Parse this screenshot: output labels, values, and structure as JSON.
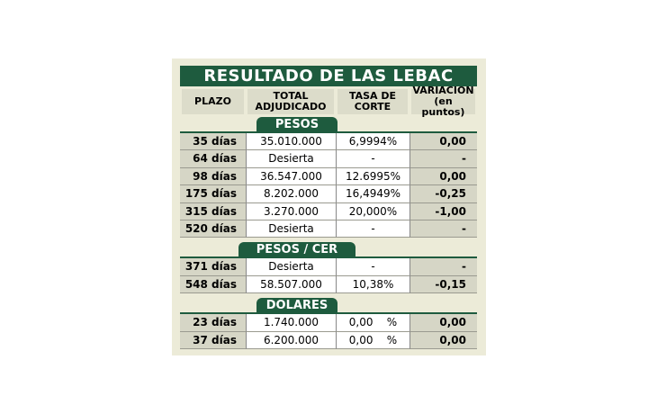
{
  "title": "RESULTADO DE LAS LEBAC",
  "headers": [
    [
      "PLAZO"
    ],
    [
      "TOTAL",
      "ADJUDICADO"
    ],
    [
      "TASA DE",
      "CORTE"
    ],
    [
      "VARIACION",
      "(en puntos)"
    ]
  ],
  "sections": [
    {
      "name": "PESOS",
      "rows": [
        [
          "35 días",
          "35.010.000",
          "6,9994%",
          "0,00"
        ],
        [
          "64 días",
          "Desierta",
          "-",
          "-"
        ],
        [
          "98 días",
          "36.547.000",
          "12.6995%",
          "0,00"
        ],
        [
          "175 días",
          "8.202.000",
          "16,4949%",
          "-0,25"
        ],
        [
          "315 días",
          "3.270.000",
          "20,000%",
          "-1,00"
        ],
        [
          "520 días",
          "Desierta",
          "-",
          "-"
        ]
      ]
    },
    {
      "name": "PESOS / CER",
      "rows": [
        [
          "371 días",
          "Desierta",
          "-",
          "-"
        ],
        [
          "548 días",
          "58.507.000",
          "10,38%",
          "-0,15"
        ]
      ]
    },
    {
      "name": "DOLARES",
      "rows": [
        [
          "23 días",
          "1.740.000",
          "0,00    %",
          "0,00"
        ],
        [
          "37 días",
          "6.200.000",
          "0,00    %",
          "0,00"
        ]
      ]
    }
  ]
}
